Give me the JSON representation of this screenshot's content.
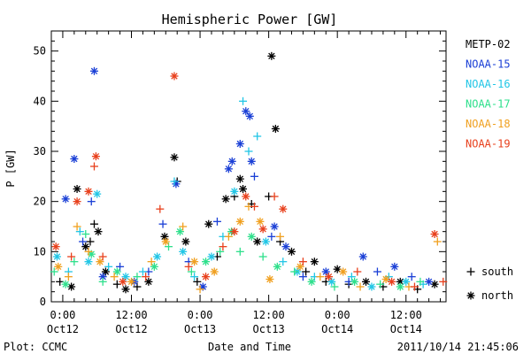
{
  "footer": {
    "left": "Plot: CCMC",
    "right": "2011/10/14 21:45:06"
  },
  "colors": {
    "METP-02": "#000000",
    "NOAA-15": "#1a3fd6",
    "NOAA-16": "#22c6e6",
    "NOAA-17": "#2ee08c",
    "NOAA-18": "#f0a020",
    "NOAA-19": "#e8401c"
  },
  "chart_data": {
    "type": "scatter",
    "title": "Hemispheric Power [GW]",
    "xlabel": "Date and Time",
    "ylabel": "P [GW]",
    "x_unit": "hours since 2011-10-12 00:00 UT",
    "xlim": [
      -2,
      67
    ],
    "ylim": [
      0,
      54
    ],
    "yticks": [
      0,
      10,
      20,
      30,
      40,
      50
    ],
    "xticks": [
      {
        "x": 0,
        "time": "0:00",
        "date": "Oct12"
      },
      {
        "x": 12,
        "time": "12:00",
        "date": "Oct12"
      },
      {
        "x": 24,
        "time": "0:00",
        "date": "Oct13"
      },
      {
        "x": 36,
        "time": "12:00",
        "date": "Oct13"
      },
      {
        "x": 48,
        "time": "0:00",
        "date": "Oct14"
      },
      {
        "x": 60,
        "time": "12:00",
        "date": "Oct14"
      }
    ],
    "legend": {
      "placement": "right",
      "series": [
        "METP-02",
        "NOAA-15",
        "NOAA-16",
        "NOAA-17",
        "NOAA-18",
        "NOAA-19"
      ],
      "markers": [
        {
          "symbol": "+",
          "label": "south"
        },
        {
          "symbol": "*",
          "label": "north"
        }
      ]
    },
    "series": [
      {
        "name": "METP-02",
        "points": [
          {
            "x": -0.5,
            "y": 4,
            "h": "south"
          },
          {
            "x": 1.5,
            "y": 3,
            "h": "north"
          },
          {
            "x": 2.5,
            "y": 22.5,
            "h": "north"
          },
          {
            "x": 4,
            "y": 11,
            "h": "north"
          },
          {
            "x": 4.8,
            "y": 12,
            "h": "south"
          },
          {
            "x": 5.5,
            "y": 15.5,
            "h": "south"
          },
          {
            "x": 6.2,
            "y": 14,
            "h": "north"
          },
          {
            "x": 7.5,
            "y": 6,
            "h": "north"
          },
          {
            "x": 9.5,
            "y": 3.5,
            "h": "south"
          },
          {
            "x": 11,
            "y": 2.5,
            "h": "north"
          },
          {
            "x": 13,
            "y": 3,
            "h": "south"
          },
          {
            "x": 15,
            "y": 4,
            "h": "north"
          },
          {
            "x": 17.8,
            "y": 13,
            "h": "north"
          },
          {
            "x": 19.5,
            "y": 28.8,
            "h": "north"
          },
          {
            "x": 20,
            "y": 24,
            "h": "south"
          },
          {
            "x": 21.5,
            "y": 12,
            "h": "north"
          },
          {
            "x": 23.5,
            "y": 4,
            "h": "south"
          },
          {
            "x": 25.5,
            "y": 15.5,
            "h": "north"
          },
          {
            "x": 27,
            "y": 9,
            "h": "south"
          },
          {
            "x": 28.5,
            "y": 20.5,
            "h": "north"
          },
          {
            "x": 30,
            "y": 21,
            "h": "south"
          },
          {
            "x": 31,
            "y": 24.5,
            "h": "north"
          },
          {
            "x": 31.5,
            "y": 22.5,
            "h": "north"
          },
          {
            "x": 33,
            "y": 19.5,
            "h": "south"
          },
          {
            "x": 34,
            "y": 12,
            "h": "north"
          },
          {
            "x": 36,
            "y": 21,
            "h": "south"
          },
          {
            "x": 36.5,
            "y": 49,
            "h": "north"
          },
          {
            "x": 37.2,
            "y": 34.5,
            "h": "north"
          },
          {
            "x": 38,
            "y": 12,
            "h": "south"
          },
          {
            "x": 40,
            "y": 10,
            "h": "north"
          },
          {
            "x": 42.5,
            "y": 6,
            "h": "south"
          },
          {
            "x": 44,
            "y": 8,
            "h": "north"
          },
          {
            "x": 46,
            "y": 4,
            "h": "south"
          },
          {
            "x": 48,
            "y": 6.5,
            "h": "north"
          },
          {
            "x": 50,
            "y": 3.5,
            "h": "south"
          },
          {
            "x": 53,
            "y": 4,
            "h": "north"
          },
          {
            "x": 56,
            "y": 3,
            "h": "south"
          },
          {
            "x": 59,
            "y": 4,
            "h": "north"
          },
          {
            "x": 62,
            "y": 2.5,
            "h": "south"
          },
          {
            "x": 65,
            "y": 3.5,
            "h": "north"
          }
        ]
      },
      {
        "name": "NOAA-15",
        "points": [
          {
            "x": 0.5,
            "y": 20.5,
            "h": "north"
          },
          {
            "x": 2,
            "y": 28.5,
            "h": "north"
          },
          {
            "x": 3.5,
            "y": 12,
            "h": "south"
          },
          {
            "x": 5,
            "y": 20,
            "h": "south"
          },
          {
            "x": 5.5,
            "y": 46,
            "h": "north"
          },
          {
            "x": 7,
            "y": 5,
            "h": "north"
          },
          {
            "x": 10,
            "y": 7,
            "h": "south"
          },
          {
            "x": 12.5,
            "y": 4,
            "h": "north"
          },
          {
            "x": 15,
            "y": 6,
            "h": "south"
          },
          {
            "x": 17.5,
            "y": 15.5,
            "h": "south"
          },
          {
            "x": 19.8,
            "y": 23.5,
            "h": "north"
          },
          {
            "x": 22,
            "y": 8,
            "h": "south"
          },
          {
            "x": 24.5,
            "y": 3,
            "h": "north"
          },
          {
            "x": 27,
            "y": 16,
            "h": "south"
          },
          {
            "x": 29,
            "y": 26.5,
            "h": "north"
          },
          {
            "x": 29.6,
            "y": 28,
            "h": "north"
          },
          {
            "x": 31,
            "y": 31.5,
            "h": "north"
          },
          {
            "x": 32,
            "y": 38,
            "h": "north"
          },
          {
            "x": 32.7,
            "y": 37,
            "h": "north"
          },
          {
            "x": 33,
            "y": 28,
            "h": "north"
          },
          {
            "x": 33.5,
            "y": 25,
            "h": "south"
          },
          {
            "x": 36.5,
            "y": 13,
            "h": "south"
          },
          {
            "x": 37,
            "y": 15,
            "h": "north"
          },
          {
            "x": 39,
            "y": 11,
            "h": "north"
          },
          {
            "x": 42,
            "y": 5,
            "h": "south"
          },
          {
            "x": 46,
            "y": 6,
            "h": "north"
          },
          {
            "x": 50,
            "y": 4,
            "h": "south"
          },
          {
            "x": 52.5,
            "y": 9,
            "h": "north"
          },
          {
            "x": 55,
            "y": 6,
            "h": "south"
          },
          {
            "x": 58,
            "y": 7,
            "h": "north"
          },
          {
            "x": 61,
            "y": 5,
            "h": "south"
          },
          {
            "x": 64,
            "y": 4,
            "h": "north"
          }
        ]
      },
      {
        "name": "NOAA-16",
        "points": [
          {
            "x": -1,
            "y": 9,
            "h": "north"
          },
          {
            "x": 1,
            "y": 6,
            "h": "south"
          },
          {
            "x": 3,
            "y": 14,
            "h": "south"
          },
          {
            "x": 4.5,
            "y": 8,
            "h": "north"
          },
          {
            "x": 6,
            "y": 21.5,
            "h": "north"
          },
          {
            "x": 8,
            "y": 7,
            "h": "south"
          },
          {
            "x": 11,
            "y": 5,
            "h": "north"
          },
          {
            "x": 14,
            "y": 6,
            "h": "south"
          },
          {
            "x": 16.5,
            "y": 9,
            "h": "north"
          },
          {
            "x": 19.5,
            "y": 24,
            "h": "south"
          },
          {
            "x": 21,
            "y": 10,
            "h": "north"
          },
          {
            "x": 23,
            "y": 5,
            "h": "south"
          },
          {
            "x": 26,
            "y": 9,
            "h": "north"
          },
          {
            "x": 28,
            "y": 13,
            "h": "south"
          },
          {
            "x": 30,
            "y": 22,
            "h": "north"
          },
          {
            "x": 31.5,
            "y": 40,
            "h": "south"
          },
          {
            "x": 32.5,
            "y": 30,
            "h": "south"
          },
          {
            "x": 34,
            "y": 33,
            "h": "south"
          },
          {
            "x": 35.5,
            "y": 12,
            "h": "north"
          },
          {
            "x": 38.5,
            "y": 8,
            "h": "south"
          },
          {
            "x": 41,
            "y": 6,
            "h": "north"
          },
          {
            "x": 44,
            "y": 5,
            "h": "south"
          },
          {
            "x": 47,
            "y": 4,
            "h": "north"
          },
          {
            "x": 50.5,
            "y": 5,
            "h": "south"
          },
          {
            "x": 54,
            "y": 3,
            "h": "north"
          },
          {
            "x": 57,
            "y": 5,
            "h": "south"
          },
          {
            "x": 60,
            "y": 4,
            "h": "north"
          },
          {
            "x": 63,
            "y": 3.5,
            "h": "south"
          }
        ]
      },
      {
        "name": "NOAA-17",
        "points": [
          {
            "x": -1.5,
            "y": 6,
            "h": "south"
          },
          {
            "x": 0.5,
            "y": 3.5,
            "h": "north"
          },
          {
            "x": 2,
            "y": 8,
            "h": "south"
          },
          {
            "x": 4,
            "y": 13.5,
            "h": "south"
          },
          {
            "x": 5,
            "y": 9.5,
            "h": "north"
          },
          {
            "x": 7,
            "y": 4,
            "h": "south"
          },
          {
            "x": 9.5,
            "y": 6,
            "h": "north"
          },
          {
            "x": 13,
            "y": 5,
            "h": "south"
          },
          {
            "x": 16,
            "y": 7,
            "h": "north"
          },
          {
            "x": 18.5,
            "y": 11,
            "h": "south"
          },
          {
            "x": 20.5,
            "y": 14,
            "h": "north"
          },
          {
            "x": 22.5,
            "y": 6,
            "h": "south"
          },
          {
            "x": 25,
            "y": 8,
            "h": "north"
          },
          {
            "x": 27.5,
            "y": 10,
            "h": "south"
          },
          {
            "x": 29.5,
            "y": 14,
            "h": "north"
          },
          {
            "x": 31,
            "y": 10,
            "h": "south"
          },
          {
            "x": 33,
            "y": 13,
            "h": "north"
          },
          {
            "x": 35,
            "y": 9,
            "h": "south"
          },
          {
            "x": 37.5,
            "y": 7,
            "h": "north"
          },
          {
            "x": 40.5,
            "y": 6,
            "h": "south"
          },
          {
            "x": 43.5,
            "y": 4,
            "h": "north"
          },
          {
            "x": 47.5,
            "y": 3,
            "h": "south"
          },
          {
            "x": 51,
            "y": 4,
            "h": "north"
          },
          {
            "x": 55.5,
            "y": 3.5,
            "h": "south"
          },
          {
            "x": 59,
            "y": 3,
            "h": "north"
          },
          {
            "x": 62.5,
            "y": 4,
            "h": "south"
          }
        ]
      },
      {
        "name": "NOAA-18",
        "points": [
          {
            "x": -0.8,
            "y": 7,
            "h": "north"
          },
          {
            "x": 1,
            "y": 5,
            "h": "south"
          },
          {
            "x": 2.5,
            "y": 15,
            "h": "south"
          },
          {
            "x": 4.5,
            "y": 10,
            "h": "south"
          },
          {
            "x": 6.5,
            "y": 8,
            "h": "north"
          },
          {
            "x": 9,
            "y": 5,
            "h": "south"
          },
          {
            "x": 12,
            "y": 4,
            "h": "north"
          },
          {
            "x": 15.5,
            "y": 8,
            "h": "south"
          },
          {
            "x": 18,
            "y": 12,
            "h": "north"
          },
          {
            "x": 21,
            "y": 15,
            "h": "south"
          },
          {
            "x": 23,
            "y": 8,
            "h": "north"
          },
          {
            "x": 24,
            "y": 2.5,
            "h": "south"
          },
          {
            "x": 26.5,
            "y": 6,
            "h": "north"
          },
          {
            "x": 29,
            "y": 13,
            "h": "south"
          },
          {
            "x": 31,
            "y": 16,
            "h": "north"
          },
          {
            "x": 32.5,
            "y": 19,
            "h": "south"
          },
          {
            "x": 34.5,
            "y": 16,
            "h": "north"
          },
          {
            "x": 36.2,
            "y": 4.5,
            "h": "north"
          },
          {
            "x": 38,
            "y": 13,
            "h": "south"
          },
          {
            "x": 41.5,
            "y": 7,
            "h": "north"
          },
          {
            "x": 45,
            "y": 5,
            "h": "south"
          },
          {
            "x": 49,
            "y": 6,
            "h": "north"
          },
          {
            "x": 52,
            "y": 3,
            "h": "south"
          },
          {
            "x": 56.5,
            "y": 4.5,
            "h": "north"
          },
          {
            "x": 60.5,
            "y": 3,
            "h": "south"
          },
          {
            "x": 65.5,
            "y": 12,
            "h": "south"
          }
        ]
      },
      {
        "name": "NOAA-19",
        "points": [
          {
            "x": -1.2,
            "y": 11,
            "h": "north"
          },
          {
            "x": 1.5,
            "y": 9,
            "h": "south"
          },
          {
            "x": 2.5,
            "y": 20,
            "h": "north"
          },
          {
            "x": 4.5,
            "y": 22,
            "h": "north"
          },
          {
            "x": 5.5,
            "y": 27,
            "h": "south"
          },
          {
            "x": 5.8,
            "y": 29,
            "h": "north"
          },
          {
            "x": 7,
            "y": 9,
            "h": "south"
          },
          {
            "x": 10.5,
            "y": 4,
            "h": "north"
          },
          {
            "x": 14.5,
            "y": 5,
            "h": "south"
          },
          {
            "x": 17,
            "y": 18.5,
            "h": "south"
          },
          {
            "x": 19.5,
            "y": 45,
            "h": "north"
          },
          {
            "x": 22,
            "y": 7,
            "h": "south"
          },
          {
            "x": 25,
            "y": 5,
            "h": "north"
          },
          {
            "x": 28,
            "y": 11,
            "h": "south"
          },
          {
            "x": 30,
            "y": 14,
            "h": "north"
          },
          {
            "x": 32,
            "y": 21,
            "h": "north"
          },
          {
            "x": 33.5,
            "y": 19,
            "h": "south"
          },
          {
            "x": 35,
            "y": 14.5,
            "h": "north"
          },
          {
            "x": 37,
            "y": 21,
            "h": "south"
          },
          {
            "x": 38.5,
            "y": 18.5,
            "h": "north"
          },
          {
            "x": 42,
            "y": 8,
            "h": "south"
          },
          {
            "x": 46.5,
            "y": 5,
            "h": "north"
          },
          {
            "x": 51.5,
            "y": 6,
            "h": "south"
          },
          {
            "x": 57.5,
            "y": 4,
            "h": "north"
          },
          {
            "x": 61.5,
            "y": 3,
            "h": "south"
          },
          {
            "x": 65,
            "y": 13.5,
            "h": "north"
          },
          {
            "x": 66.5,
            "y": 4,
            "h": "south"
          }
        ]
      }
    ]
  }
}
